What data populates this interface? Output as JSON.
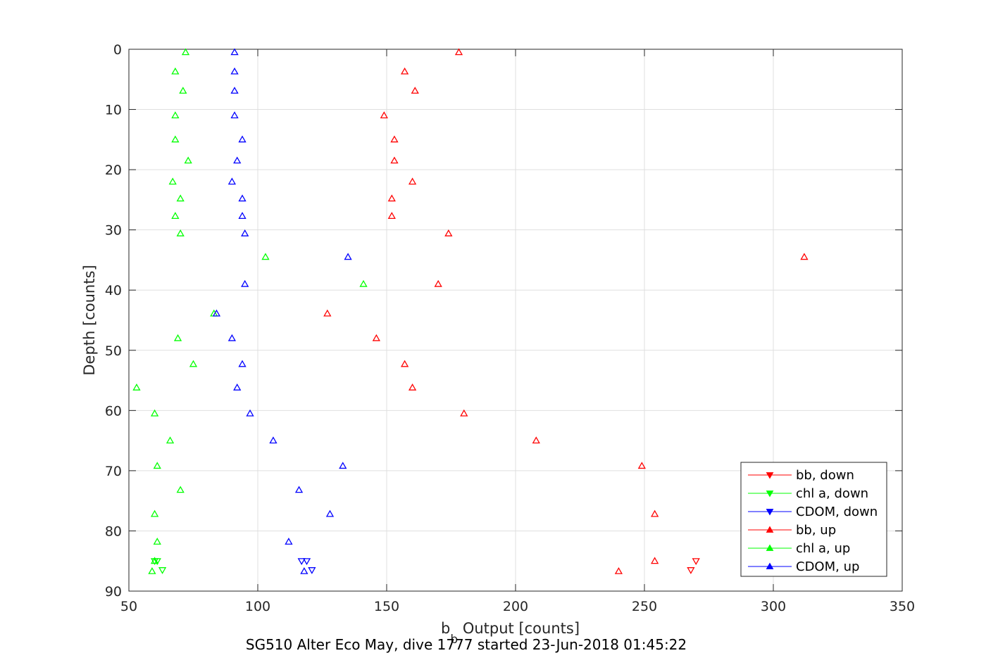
{
  "chart_data": {
    "type": "scatter",
    "xlabel_main": "b",
    "xlabel_sub": "b",
    "xlabel_rest": " Output [counts]",
    "ylabel": "Depth [counts]",
    "caption": "SG510 Alter Eco May, dive 1777 started 23-Jun-2018 01:45:22",
    "xlim": [
      50,
      350
    ],
    "ylim": [
      0,
      90
    ],
    "y_reversed": true,
    "grid": true,
    "x_ticks": [
      50,
      100,
      150,
      200,
      250,
      300,
      350
    ],
    "y_ticks": [
      0,
      10,
      20,
      30,
      40,
      50,
      60,
      70,
      80,
      90
    ],
    "legend_position": "bottom-right",
    "series": [
      {
        "name": "bb, down",
        "color": "#ff0000",
        "marker": "triangle-down",
        "points": [
          [
            270,
            85
          ],
          [
            268,
            86.5
          ]
        ]
      },
      {
        "name": "chl a, down",
        "color": "#00ff00",
        "marker": "triangle-down",
        "points": [
          [
            60,
            85
          ],
          [
            61,
            85
          ],
          [
            63,
            86.5
          ]
        ]
      },
      {
        "name": "CDOM, down",
        "color": "#0000ff",
        "marker": "triangle-down",
        "points": [
          [
            117,
            85
          ],
          [
            119,
            85
          ],
          [
            121,
            86.5
          ]
        ]
      },
      {
        "name": "bb, up",
        "color": "#ff0000",
        "marker": "triangle-up",
        "points": [
          [
            178,
            0.5
          ],
          [
            157,
            3.7
          ],
          [
            161,
            6.9
          ],
          [
            149,
            11
          ],
          [
            153,
            15
          ],
          [
            153,
            18.5
          ],
          [
            160,
            22
          ],
          [
            152,
            24.8
          ],
          [
            152,
            27.7
          ],
          [
            174,
            30.6
          ],
          [
            312,
            34.5
          ],
          [
            170,
            39
          ],
          [
            127,
            43.9
          ],
          [
            146,
            48
          ],
          [
            157,
            52.3
          ],
          [
            160,
            56.2
          ],
          [
            180,
            60.5
          ],
          [
            208,
            65
          ],
          [
            249,
            69.2
          ],
          [
            254,
            77.2
          ],
          [
            254,
            85
          ],
          [
            240,
            86.7
          ]
        ]
      },
      {
        "name": "chl a, up",
        "color": "#00ff00",
        "marker": "triangle-up",
        "points": [
          [
            72,
            0.5
          ],
          [
            68,
            3.7
          ],
          [
            71,
            6.9
          ],
          [
            68,
            11
          ],
          [
            68,
            15
          ],
          [
            73,
            18.5
          ],
          [
            67,
            22
          ],
          [
            70,
            24.8
          ],
          [
            68,
            27.7
          ],
          [
            70,
            30.6
          ],
          [
            103,
            34.5
          ],
          [
            141,
            39
          ],
          [
            83,
            43.9
          ],
          [
            69,
            48
          ],
          [
            75,
            52.3
          ],
          [
            53,
            56.2
          ],
          [
            60,
            60.5
          ],
          [
            66,
            65
          ],
          [
            61,
            69.2
          ],
          [
            70,
            73.2
          ],
          [
            60,
            77.2
          ],
          [
            61,
            81.8
          ],
          [
            60,
            85
          ],
          [
            59,
            86.7
          ]
        ]
      },
      {
        "name": "CDOM, up",
        "color": "#0000ff",
        "marker": "triangle-up",
        "points": [
          [
            91,
            0.5
          ],
          [
            91,
            3.7
          ],
          [
            91,
            6.9
          ],
          [
            91,
            11
          ],
          [
            94,
            15
          ],
          [
            92,
            18.5
          ],
          [
            90,
            22
          ],
          [
            94,
            24.8
          ],
          [
            94,
            27.7
          ],
          [
            95,
            30.6
          ],
          [
            135,
            34.5
          ],
          [
            95,
            39
          ],
          [
            84,
            43.9
          ],
          [
            90,
            48
          ],
          [
            94,
            52.3
          ],
          [
            92,
            56.2
          ],
          [
            97,
            60.5
          ],
          [
            106,
            65
          ],
          [
            133,
            69.2
          ],
          [
            116,
            73.2
          ],
          [
            128,
            77.2
          ],
          [
            112,
            81.8
          ],
          [
            118,
            86.7
          ]
        ]
      }
    ]
  }
}
